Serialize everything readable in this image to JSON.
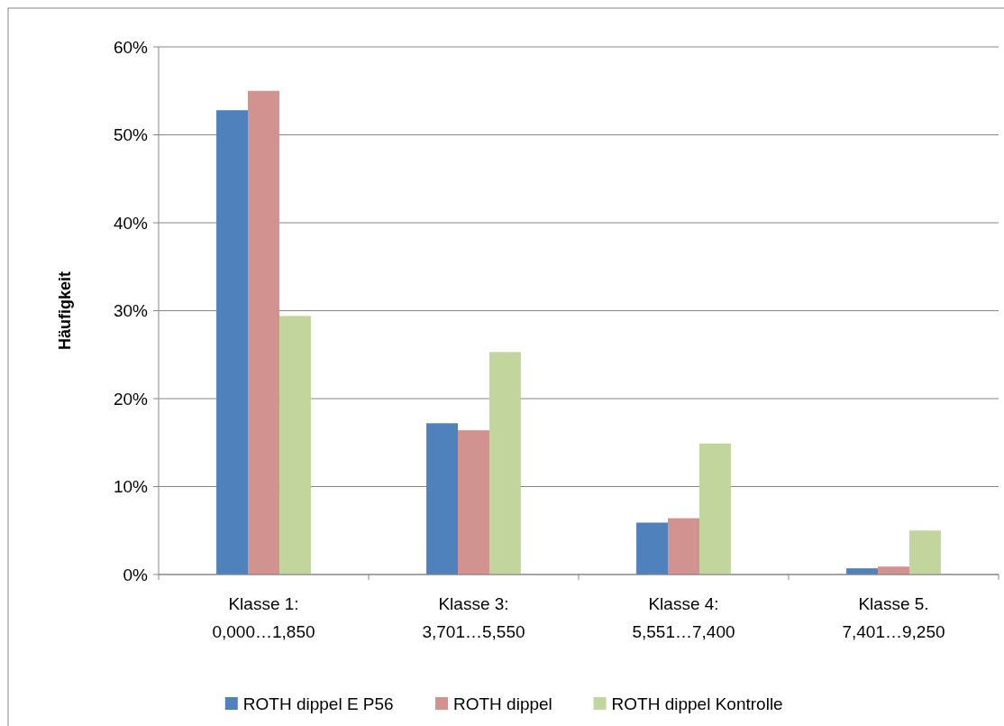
{
  "chart_data": {
    "type": "bar",
    "ylabel": "Häufigkeit",
    "categories": [
      "Klasse 1:\n0,000…1,850",
      "Klasse 3:\n3,701…5,550",
      "Klasse 4:\n5,551…7,400",
      "Klasse 5.\n7,401…9,250"
    ],
    "series": [
      {
        "name": "ROTH dippel E P56",
        "color": "#4f81bd",
        "values": [
          52.8,
          17.2,
          5.9,
          0.7
        ]
      },
      {
        "name": "ROTH dippel",
        "color": "#d29290",
        "values": [
          55.0,
          16.4,
          6.4,
          0.9
        ]
      },
      {
        "name": "ROTH dippel Kontrolle",
        "color": "#c2d59c",
        "values": [
          29.4,
          25.3,
          14.9,
          5.0
        ]
      }
    ],
    "ylim": [
      0,
      60
    ],
    "yticks": [
      {
        "value": 0,
        "label": "0%"
      },
      {
        "value": 10,
        "label": "10%"
      },
      {
        "value": 20,
        "label": "20%"
      },
      {
        "value": 30,
        "label": "30%"
      },
      {
        "value": 40,
        "label": "40%"
      },
      {
        "value": 50,
        "label": "50%"
      },
      {
        "value": 60,
        "label": "60%"
      }
    ],
    "grid": "y",
    "legend": "bottom"
  }
}
